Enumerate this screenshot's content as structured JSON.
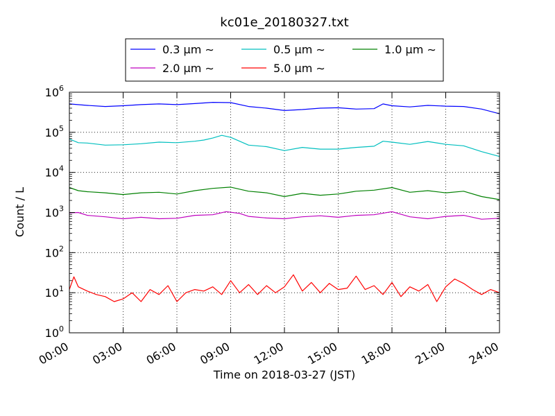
{
  "chart_data": {
    "type": "line",
    "title": "kc01e_20180327.txt",
    "xlabel": "Time on 2018-03-27 (JST)",
    "ylabel": "Count / L",
    "y_scale": "log",
    "ylim": [
      1,
      1000000
    ],
    "y_ticks": [
      {
        "base": "10",
        "exp": "0",
        "value": 1
      },
      {
        "base": "10",
        "exp": "1",
        "value": 10
      },
      {
        "base": "10",
        "exp": "2",
        "value": 100
      },
      {
        "base": "10",
        "exp": "3",
        "value": 1000
      },
      {
        "base": "10",
        "exp": "4",
        "value": 10000
      },
      {
        "base": "10",
        "exp": "5",
        "value": 100000
      },
      {
        "base": "10",
        "exp": "6",
        "value": 1000000
      }
    ],
    "xlim": [
      "00:00",
      "24:00"
    ],
    "x_ticks": [
      "00:00",
      "03:00",
      "06:00",
      "09:00",
      "12:00",
      "15:00",
      "18:00",
      "21:00",
      "24:00"
    ],
    "grid": true,
    "legend_position": "top",
    "series": [
      {
        "name": "0.3 μm ∼",
        "color": "#0000ff",
        "x": [
          "00:00",
          "01:00",
          "02:00",
          "03:00",
          "04:00",
          "05:00",
          "06:00",
          "07:00",
          "08:00",
          "09:00",
          "10:00",
          "11:00",
          "12:00",
          "13:00",
          "14:00",
          "15:00",
          "16:00",
          "17:00",
          "17:30",
          "18:00",
          "19:00",
          "20:00",
          "21:00",
          "22:00",
          "23:00",
          "24:00"
        ],
        "values": [
          510000,
          470000,
          440000,
          460000,
          490000,
          510000,
          490000,
          520000,
          560000,
          550000,
          440000,
          400000,
          350000,
          370000,
          400000,
          410000,
          380000,
          390000,
          510000,
          460000,
          430000,
          470000,
          450000,
          440000,
          380000,
          290000
        ]
      },
      {
        "name": "0.5 μm ∼",
        "color": "#00bfbf",
        "x": [
          "00:00",
          "00:30",
          "01:00",
          "02:00",
          "03:00",
          "04:00",
          "05:00",
          "06:00",
          "07:00",
          "07:30",
          "08:00",
          "08:30",
          "09:00",
          "10:00",
          "11:00",
          "12:00",
          "13:00",
          "14:00",
          "15:00",
          "16:00",
          "17:00",
          "17:30",
          "18:00",
          "19:00",
          "20:00",
          "21:00",
          "22:00",
          "23:00",
          "24:00"
        ],
        "values": [
          68000,
          55000,
          54000,
          48000,
          49000,
          52000,
          57000,
          55000,
          60000,
          64000,
          72000,
          84000,
          75000,
          48000,
          44000,
          35000,
          42000,
          38000,
          38000,
          42000,
          45000,
          60000,
          57000,
          50000,
          59000,
          50000,
          46000,
          33000,
          25000
        ]
      },
      {
        "name": "1.0 μm ∼",
        "color": "#008000",
        "x": [
          "00:00",
          "00:30",
          "01:00",
          "02:00",
          "03:00",
          "04:00",
          "05:00",
          "06:00",
          "07:00",
          "08:00",
          "09:00",
          "10:00",
          "11:00",
          "12:00",
          "13:00",
          "14:00",
          "15:00",
          "16:00",
          "17:00",
          "18:00",
          "19:00",
          "20:00",
          "21:00",
          "22:00",
          "23:00",
          "24:00"
        ],
        "values": [
          4200,
          3500,
          3300,
          3100,
          2800,
          3100,
          3200,
          2900,
          3500,
          4000,
          4300,
          3400,
          3100,
          2500,
          3000,
          2700,
          2900,
          3400,
          3600,
          4200,
          3200,
          3500,
          3100,
          3400,
          2500,
          2100
        ]
      },
      {
        "name": "2.0 μm ∼",
        "color": "#bf00bf",
        "x": [
          "00:00",
          "00:30",
          "01:00",
          "02:00",
          "03:00",
          "04:00",
          "05:00",
          "06:00",
          "07:00",
          "08:00",
          "08:45",
          "09:30",
          "10:00",
          "11:00",
          "12:00",
          "13:00",
          "14:00",
          "15:00",
          "16:00",
          "17:00",
          "18:00",
          "19:00",
          "20:00",
          "21:00",
          "22:00",
          "23:00",
          "24:00"
        ],
        "values": [
          980,
          1000,
          850,
          780,
          700,
          760,
          700,
          720,
          850,
          880,
          1050,
          950,
          800,
          730,
          700,
          780,
          830,
          760,
          850,
          880,
          1050,
          780,
          700,
          800,
          850,
          680,
          720
        ]
      },
      {
        "name": "5.0 μm ∼",
        "color": "#ff0000",
        "x": [
          "00:00",
          "00:15",
          "00:30",
          "01:00",
          "01:30",
          "02:00",
          "02:30",
          "03:00",
          "03:30",
          "04:00",
          "04:30",
          "05:00",
          "05:30",
          "06:00",
          "06:30",
          "07:00",
          "07:30",
          "08:00",
          "08:30",
          "09:00",
          "09:30",
          "10:00",
          "10:30",
          "11:00",
          "11:30",
          "12:00",
          "12:30",
          "13:00",
          "13:30",
          "14:00",
          "14:30",
          "15:00",
          "15:30",
          "16:00",
          "16:30",
          "17:00",
          "17:30",
          "18:00",
          "18:30",
          "19:00",
          "19:30",
          "20:00",
          "20:30",
          "21:00",
          "21:30",
          "22:00",
          "22:30",
          "23:00",
          "23:30",
          "24:00"
        ],
        "values": [
          12,
          25,
          14,
          11,
          9,
          8,
          6,
          7,
          10,
          6,
          12,
          9,
          15,
          6,
          10,
          12,
          11,
          14,
          9,
          20,
          10,
          16,
          9,
          15,
          10,
          14,
          28,
          11,
          18,
          10,
          17,
          12,
          13,
          26,
          12,
          15,
          9,
          18,
          8,
          14,
          11,
          16,
          6,
          14,
          22,
          17,
          12,
          9,
          12,
          10
        ]
      }
    ]
  }
}
